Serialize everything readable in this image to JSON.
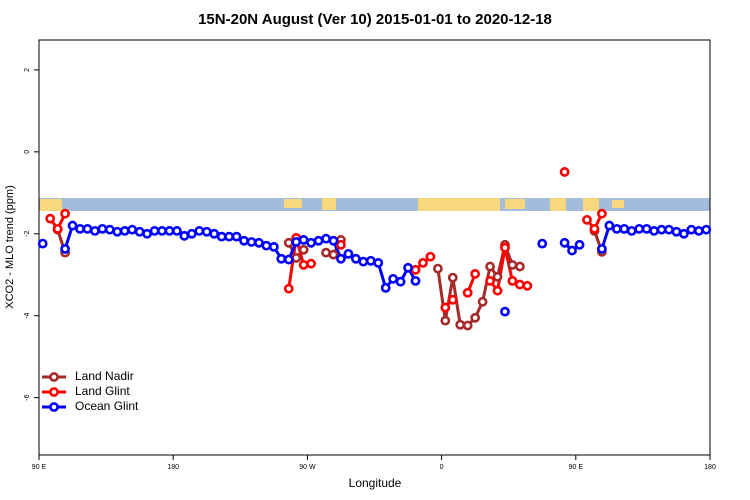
{
  "chart_data": {
    "type": "line",
    "title": "15N-20N August (Ver 10)   2015-01-01 to 2020-12-18",
    "x_label": "Longitude",
    "y_label": "XCO2 - MLO trend (ppm)",
    "xlim": [
      90,
      540
    ],
    "ylim": [
      -7.4,
      2.73
    ],
    "xticks": [
      {
        "value": 90,
        "label": "90 E"
      },
      180,
      {
        "value": 270,
        "label": "90 W"
      },
      {
        "value": 360,
        "label": "0"
      },
      {
        "value": 450,
        "label": "90 E"
      },
      {
        "value": 540,
        "label": "180"
      }
    ],
    "yticks": [
      2,
      0,
      -2,
      -4,
      -6
    ],
    "legend": "bottomleft",
    "x": [
      92.5,
      97.5,
      102.5,
      107.5,
      112.5,
      117.5,
      122.5,
      127.5,
      132.5,
      137.5,
      142.5,
      147.5,
      152.5,
      157.5,
      162.5,
      167.5,
      172.5,
      177.5,
      182.5,
      187.5,
      192.5,
      197.5,
      202.5,
      207.5,
      212.5,
      217.5,
      222.5,
      227.5,
      232.5,
      237.5,
      242.5,
      247.5,
      252.5,
      257.5,
      262.5,
      267.5,
      272.5,
      277.5,
      282.5,
      287.5,
      292.5,
      297.5,
      302.5,
      307.5,
      312.5,
      317.5,
      322.5,
      327.5,
      332.5,
      337.5,
      342.5,
      347.5,
      352.5,
      357.5,
      362.5,
      367.5,
      372.5,
      377.5,
      382.5,
      387.5,
      392.5,
      397.5,
      402.5,
      407.5,
      412.5,
      417.5,
      422.5,
      427.5,
      432.5,
      437.5,
      442.5,
      447.5,
      452.5,
      457.5,
      462.5,
      467.5,
      472.5,
      477.5,
      482.5,
      487.5,
      492.5,
      497.5,
      502.5,
      507.5,
      512.5,
      517.5,
      522.5,
      527.5,
      532.5,
      537.5
    ],
    "series": [
      {
        "name": "Land Nadir",
        "color": "#a52a2a",
        "values": [
          null,
          null,
          -1.9,
          -2.46,
          null,
          null,
          null,
          null,
          null,
          null,
          null,
          null,
          null,
          null,
          null,
          null,
          null,
          null,
          null,
          null,
          null,
          null,
          null,
          null,
          null,
          null,
          null,
          null,
          null,
          null,
          null,
          null,
          null,
          -2.22,
          -2.59,
          -2.39,
          null,
          null,
          -2.46,
          -2.51,
          -2.15,
          null,
          null,
          null,
          null,
          null,
          null,
          null,
          null,
          null,
          null,
          null,
          null,
          -2.85,
          -4.12,
          -3.07,
          -4.22,
          -4.24,
          -4.05,
          -3.66,
          -2.8,
          -3.05,
          -2.27,
          -2.76,
          -2.8,
          null,
          null,
          null,
          null,
          null,
          null,
          null,
          null,
          null,
          -1.93,
          -2.44,
          null,
          null,
          null,
          null,
          null,
          null,
          null,
          null,
          null,
          null,
          null,
          null,
          null,
          null
        ]
      },
      {
        "name": "Land Glint",
        "color": "#ff0000",
        "values": [
          null,
          -1.63,
          -1.88,
          -1.51,
          null,
          null,
          null,
          null,
          null,
          null,
          null,
          null,
          null,
          null,
          null,
          null,
          null,
          null,
          null,
          null,
          null,
          null,
          null,
          null,
          null,
          null,
          null,
          null,
          null,
          null,
          null,
          null,
          null,
          -3.34,
          -2.1,
          -2.76,
          -2.73,
          null,
          null,
          null,
          -2.27,
          null,
          null,
          null,
          null,
          null,
          null,
          null,
          null,
          null,
          -2.88,
          -2.71,
          -2.56,
          null,
          -3.8,
          -3.61,
          null,
          -3.44,
          -2.98,
          null,
          -3.15,
          -3.39,
          -2.34,
          -3.15,
          -3.24,
          -3.27,
          null,
          null,
          null,
          null,
          -0.49,
          null,
          null,
          -1.66,
          -1.88,
          -1.51,
          null,
          null,
          null,
          null,
          null,
          null,
          null,
          null,
          null,
          null,
          null,
          null,
          null,
          null
        ]
      },
      {
        "name": "Ocean Glint",
        "color": "#0000ff",
        "values": [
          -2.24,
          null,
          null,
          -2.37,
          -1.8,
          -1.88,
          -1.88,
          -1.93,
          -1.88,
          -1.9,
          -1.95,
          -1.93,
          -1.9,
          -1.95,
          -2.0,
          -1.93,
          -1.93,
          -1.93,
          -1.93,
          -2.05,
          -2.0,
          -1.93,
          -1.95,
          -2.0,
          -2.07,
          -2.07,
          -2.07,
          -2.17,
          -2.2,
          -2.22,
          -2.29,
          -2.32,
          -2.61,
          -2.63,
          -2.2,
          -2.15,
          -2.22,
          -2.17,
          -2.12,
          -2.17,
          -2.61,
          -2.49,
          -2.61,
          -2.68,
          -2.66,
          -2.71,
          -3.32,
          -3.1,
          -3.17,
          -2.83,
          -3.15,
          null,
          null,
          null,
          null,
          null,
          null,
          null,
          null,
          null,
          null,
          null,
          -3.9,
          null,
          null,
          null,
          null,
          -2.24,
          null,
          null,
          -2.22,
          -2.41,
          -2.27,
          null,
          null,
          -2.37,
          -1.8,
          -1.88,
          -1.88,
          -1.93,
          -1.88,
          -1.88,
          -1.93,
          -1.9,
          -1.9,
          -1.95,
          -2.0,
          -1.9,
          -1.93,
          -1.9
        ]
      }
    ]
  }
}
